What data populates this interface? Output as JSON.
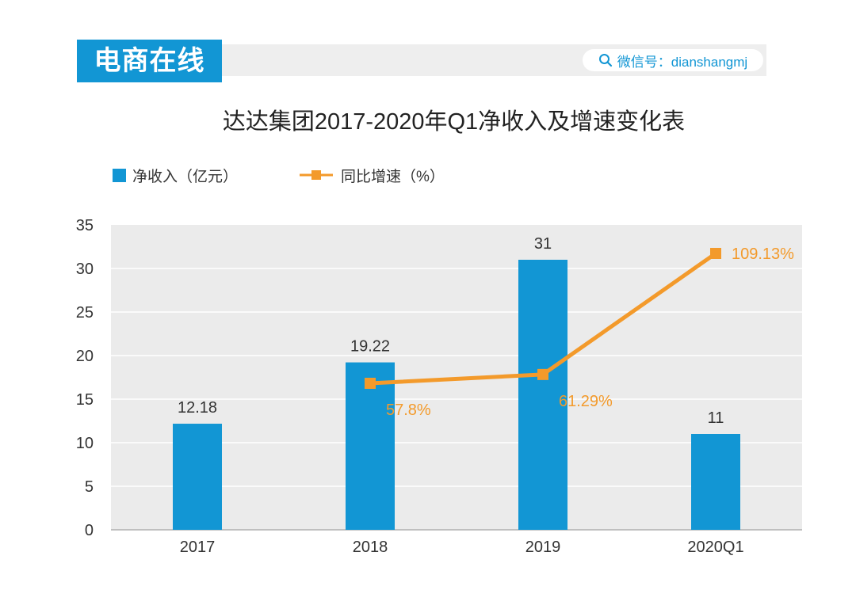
{
  "header": {
    "brand": "电商在线",
    "wechat_label": "微信号：dianshangmj",
    "icon": "search-icon"
  },
  "colors": {
    "accent": "#1296d4",
    "line": "#f39a2b",
    "plot_bg": "#ebebeb",
    "grid": "#ffffff"
  },
  "chart_data": {
    "type": "bar",
    "title": "达达集团2017-2020年Q1净收入及增速变化表",
    "categories": [
      "2017",
      "2018",
      "2019",
      "2020Q1"
    ],
    "ylim": [
      0,
      35
    ],
    "yticks": [
      0,
      5,
      10,
      15,
      20,
      25,
      30,
      35
    ],
    "grid": true,
    "legend_position": "top-left",
    "xlabel": "",
    "ylabel": "",
    "series": [
      {
        "name": "净收入（亿元）",
        "type": "bar",
        "values": [
          12.18,
          19.22,
          31,
          11
        ],
        "labels": [
          "12.18",
          "19.22",
          "31",
          "11"
        ]
      },
      {
        "name": "同比增速（%）",
        "type": "line",
        "values": [
          null,
          57.8,
          61.29,
          109.13
        ],
        "labels": [
          "",
          "57.8%",
          "61.29%",
          "109.13%"
        ]
      }
    ]
  }
}
